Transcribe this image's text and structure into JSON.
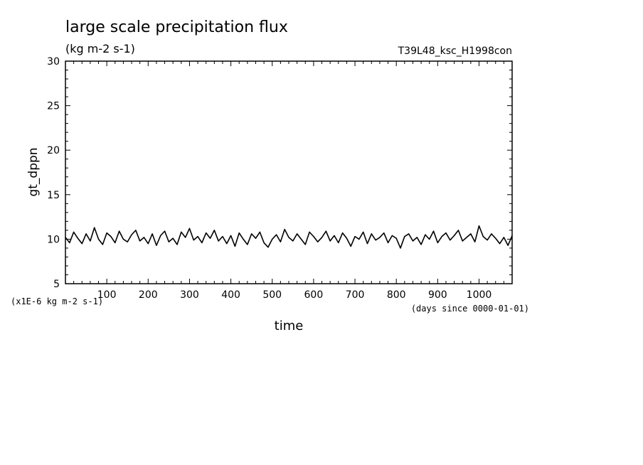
{
  "chart_data": {
    "type": "line",
    "title": "large scale precipitation flux",
    "subtitle": "(kg m-2 s-1)",
    "run_label": "T39L48_ksc_H1998con",
    "xlabel": "time",
    "ylabel": "gt_dppn",
    "x_unit_note": "(days since 0000-01-01)",
    "y_scale_note": "(x1E-6 kg m-2 s-1)",
    "xlim": [
      0,
      1080
    ],
    "ylim": [
      5,
      30
    ],
    "x_tick_labels": [
      "100",
      "200",
      "300",
      "400",
      "500",
      "600",
      "700",
      "800",
      "900",
      "1000"
    ],
    "y_tick_labels": [
      "5",
      "10",
      "15",
      "20",
      "25",
      "30"
    ],
    "series": [
      {
        "x": [
          0,
          10,
          20,
          30,
          40,
          50,
          60,
          70,
          80,
          90,
          100,
          110,
          120,
          130,
          140,
          150,
          160,
          170,
          180,
          190,
          200,
          210,
          220,
          230,
          240,
          250,
          260,
          270,
          280,
          290,
          300,
          310,
          320,
          330,
          340,
          350,
          360,
          370,
          380,
          390,
          400,
          410,
          420,
          430,
          440,
          450,
          460,
          470,
          480,
          490,
          500,
          510,
          520,
          530,
          540,
          550,
          560,
          570,
          580,
          590,
          600,
          610,
          620,
          630,
          640,
          650,
          660,
          670,
          680,
          690,
          700,
          710,
          720,
          730,
          740,
          750,
          760,
          770,
          780,
          790,
          800,
          810,
          820,
          830,
          840,
          850,
          860,
          870,
          880,
          890,
          900,
          910,
          920,
          930,
          940,
          950,
          960,
          970,
          980,
          990,
          1000,
          1010,
          1020,
          1030,
          1040,
          1050,
          1060,
          1070,
          1080
        ],
        "y": [
          10.2,
          9.6,
          10.8,
          10.1,
          9.5,
          10.6,
          9.8,
          11.3,
          10.0,
          9.4,
          10.7,
          10.3,
          9.6,
          10.9,
          10.0,
          9.7,
          10.5,
          11.0,
          9.8,
          10.2,
          9.5,
          10.6,
          9.3,
          10.4,
          10.9,
          9.7,
          10.1,
          9.4,
          10.8,
          10.2,
          11.2,
          9.9,
          10.3,
          9.6,
          10.7,
          10.1,
          11.0,
          9.8,
          10.3,
          9.5,
          10.4,
          9.2,
          10.7,
          10.0,
          9.4,
          10.6,
          10.1,
          10.8,
          9.6,
          9.1,
          10.0,
          10.5,
          9.7,
          11.1,
          10.2,
          9.8,
          10.6,
          10.0,
          9.4,
          10.8,
          10.3,
          9.7,
          10.2,
          10.9,
          9.8,
          10.4,
          9.6,
          10.7,
          10.1,
          9.2,
          10.3,
          10.0,
          10.8,
          9.5,
          10.6,
          9.9,
          10.2,
          10.7,
          9.6,
          10.4,
          10.1,
          9.0,
          10.3,
          10.6,
          9.8,
          10.2,
          9.4,
          10.5,
          10.0,
          10.9,
          9.6,
          10.3,
          10.7,
          9.9,
          10.4,
          11.0,
          9.8,
          10.2,
          10.6,
          9.7,
          11.5,
          10.3,
          9.9,
          10.6,
          10.1,
          9.5,
          10.2,
          9.3,
          10.4
        ]
      }
    ]
  }
}
